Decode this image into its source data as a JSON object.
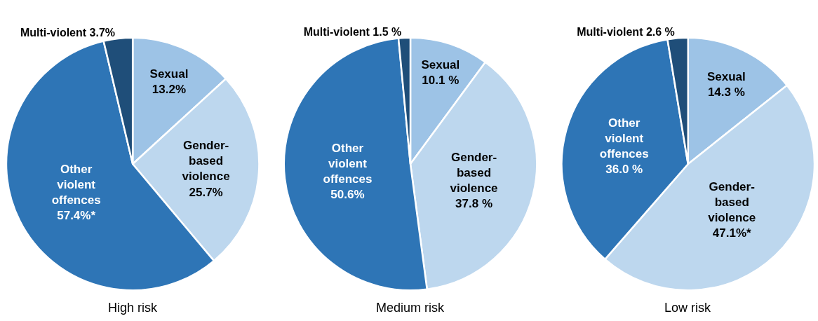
{
  "chart_data": [
    {
      "type": "pie",
      "title": "High risk",
      "categories": [
        "Sexual",
        "Gender-based violence",
        "Other violent offences",
        "Multi-violent"
      ],
      "values": [
        13.2,
        25.7,
        57.4,
        3.7
      ],
      "value_labels": [
        "13.2%",
        "25.7%",
        "57.4%*",
        "3.7%"
      ],
      "colors": [
        "#9dc3e6",
        "#bdd7ee",
        "#2e75b6",
        "#1f4e79"
      ]
    },
    {
      "type": "pie",
      "title": "Medium risk",
      "categories": [
        "Sexual",
        "Gender-based violence",
        "Other violent offences",
        "Multi-violent"
      ],
      "values": [
        10.1,
        37.8,
        50.6,
        1.5
      ],
      "value_labels": [
        "10.1 %",
        "37.8 %",
        "50.6%",
        "1.5 %"
      ],
      "colors": [
        "#9dc3e6",
        "#bdd7ee",
        "#2e75b6",
        "#1f4e79"
      ]
    },
    {
      "type": "pie",
      "title": "Low risk",
      "categories": [
        "Sexual",
        "Gender-based violence",
        "Other violent offences",
        "Multi-violent"
      ],
      "values": [
        14.3,
        47.1,
        36.0,
        2.6
      ],
      "value_labels": [
        "14.3 %",
        "47.1%*",
        "36.0 %",
        "2.6 %"
      ],
      "colors": [
        "#9dc3e6",
        "#bdd7ee",
        "#2e75b6",
        "#1f4e79"
      ]
    }
  ]
}
